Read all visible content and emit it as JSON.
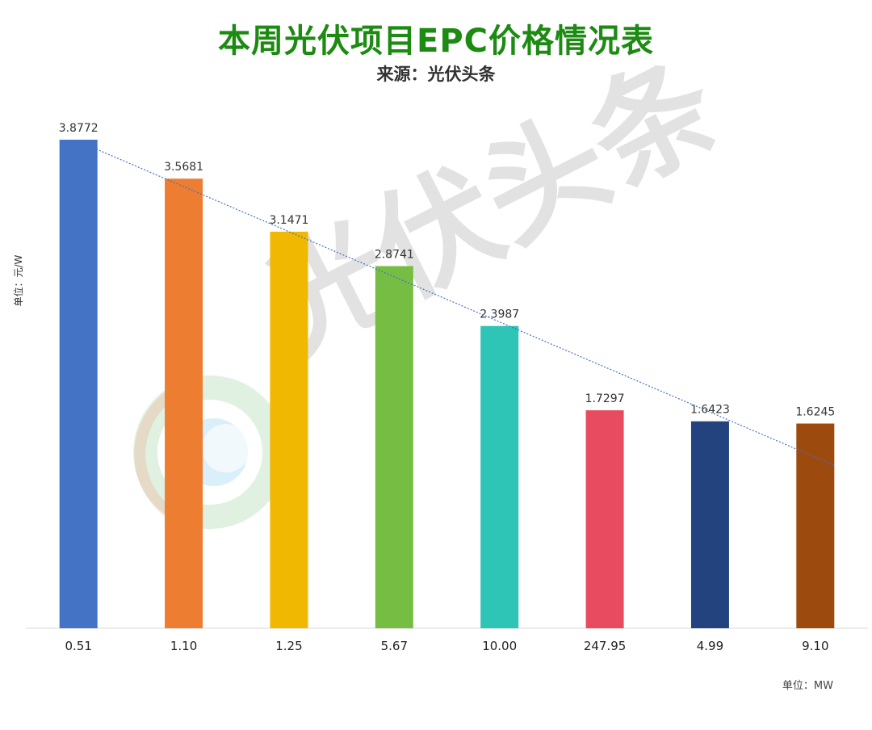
{
  "title": "本周光伏项目EPC价格情况表",
  "subtitle": "来源：光伏头条",
  "watermark": "光伏头条",
  "y_unit_label": "单位：元/W",
  "x_unit_label": "单位：MW",
  "chart_data": {
    "type": "bar",
    "categories": [
      "0.51",
      "1.10",
      "1.25",
      "5.67",
      "10.00",
      "247.95",
      "4.99",
      "9.10"
    ],
    "values": [
      3.8772,
      3.5681,
      3.1471,
      2.8741,
      2.3987,
      1.7297,
      1.6423,
      1.6245
    ],
    "ylim": [
      0,
      4.0
    ],
    "grid": false,
    "trendline": "linear",
    "colors": [
      "#4472c4",
      "#ed7d31",
      "#f0b800",
      "#76bd43",
      "#2ec4b6",
      "#e84a5f",
      "#23437f",
      "#9c4a0e"
    ],
    "trendline_color": "#4472c4"
  }
}
